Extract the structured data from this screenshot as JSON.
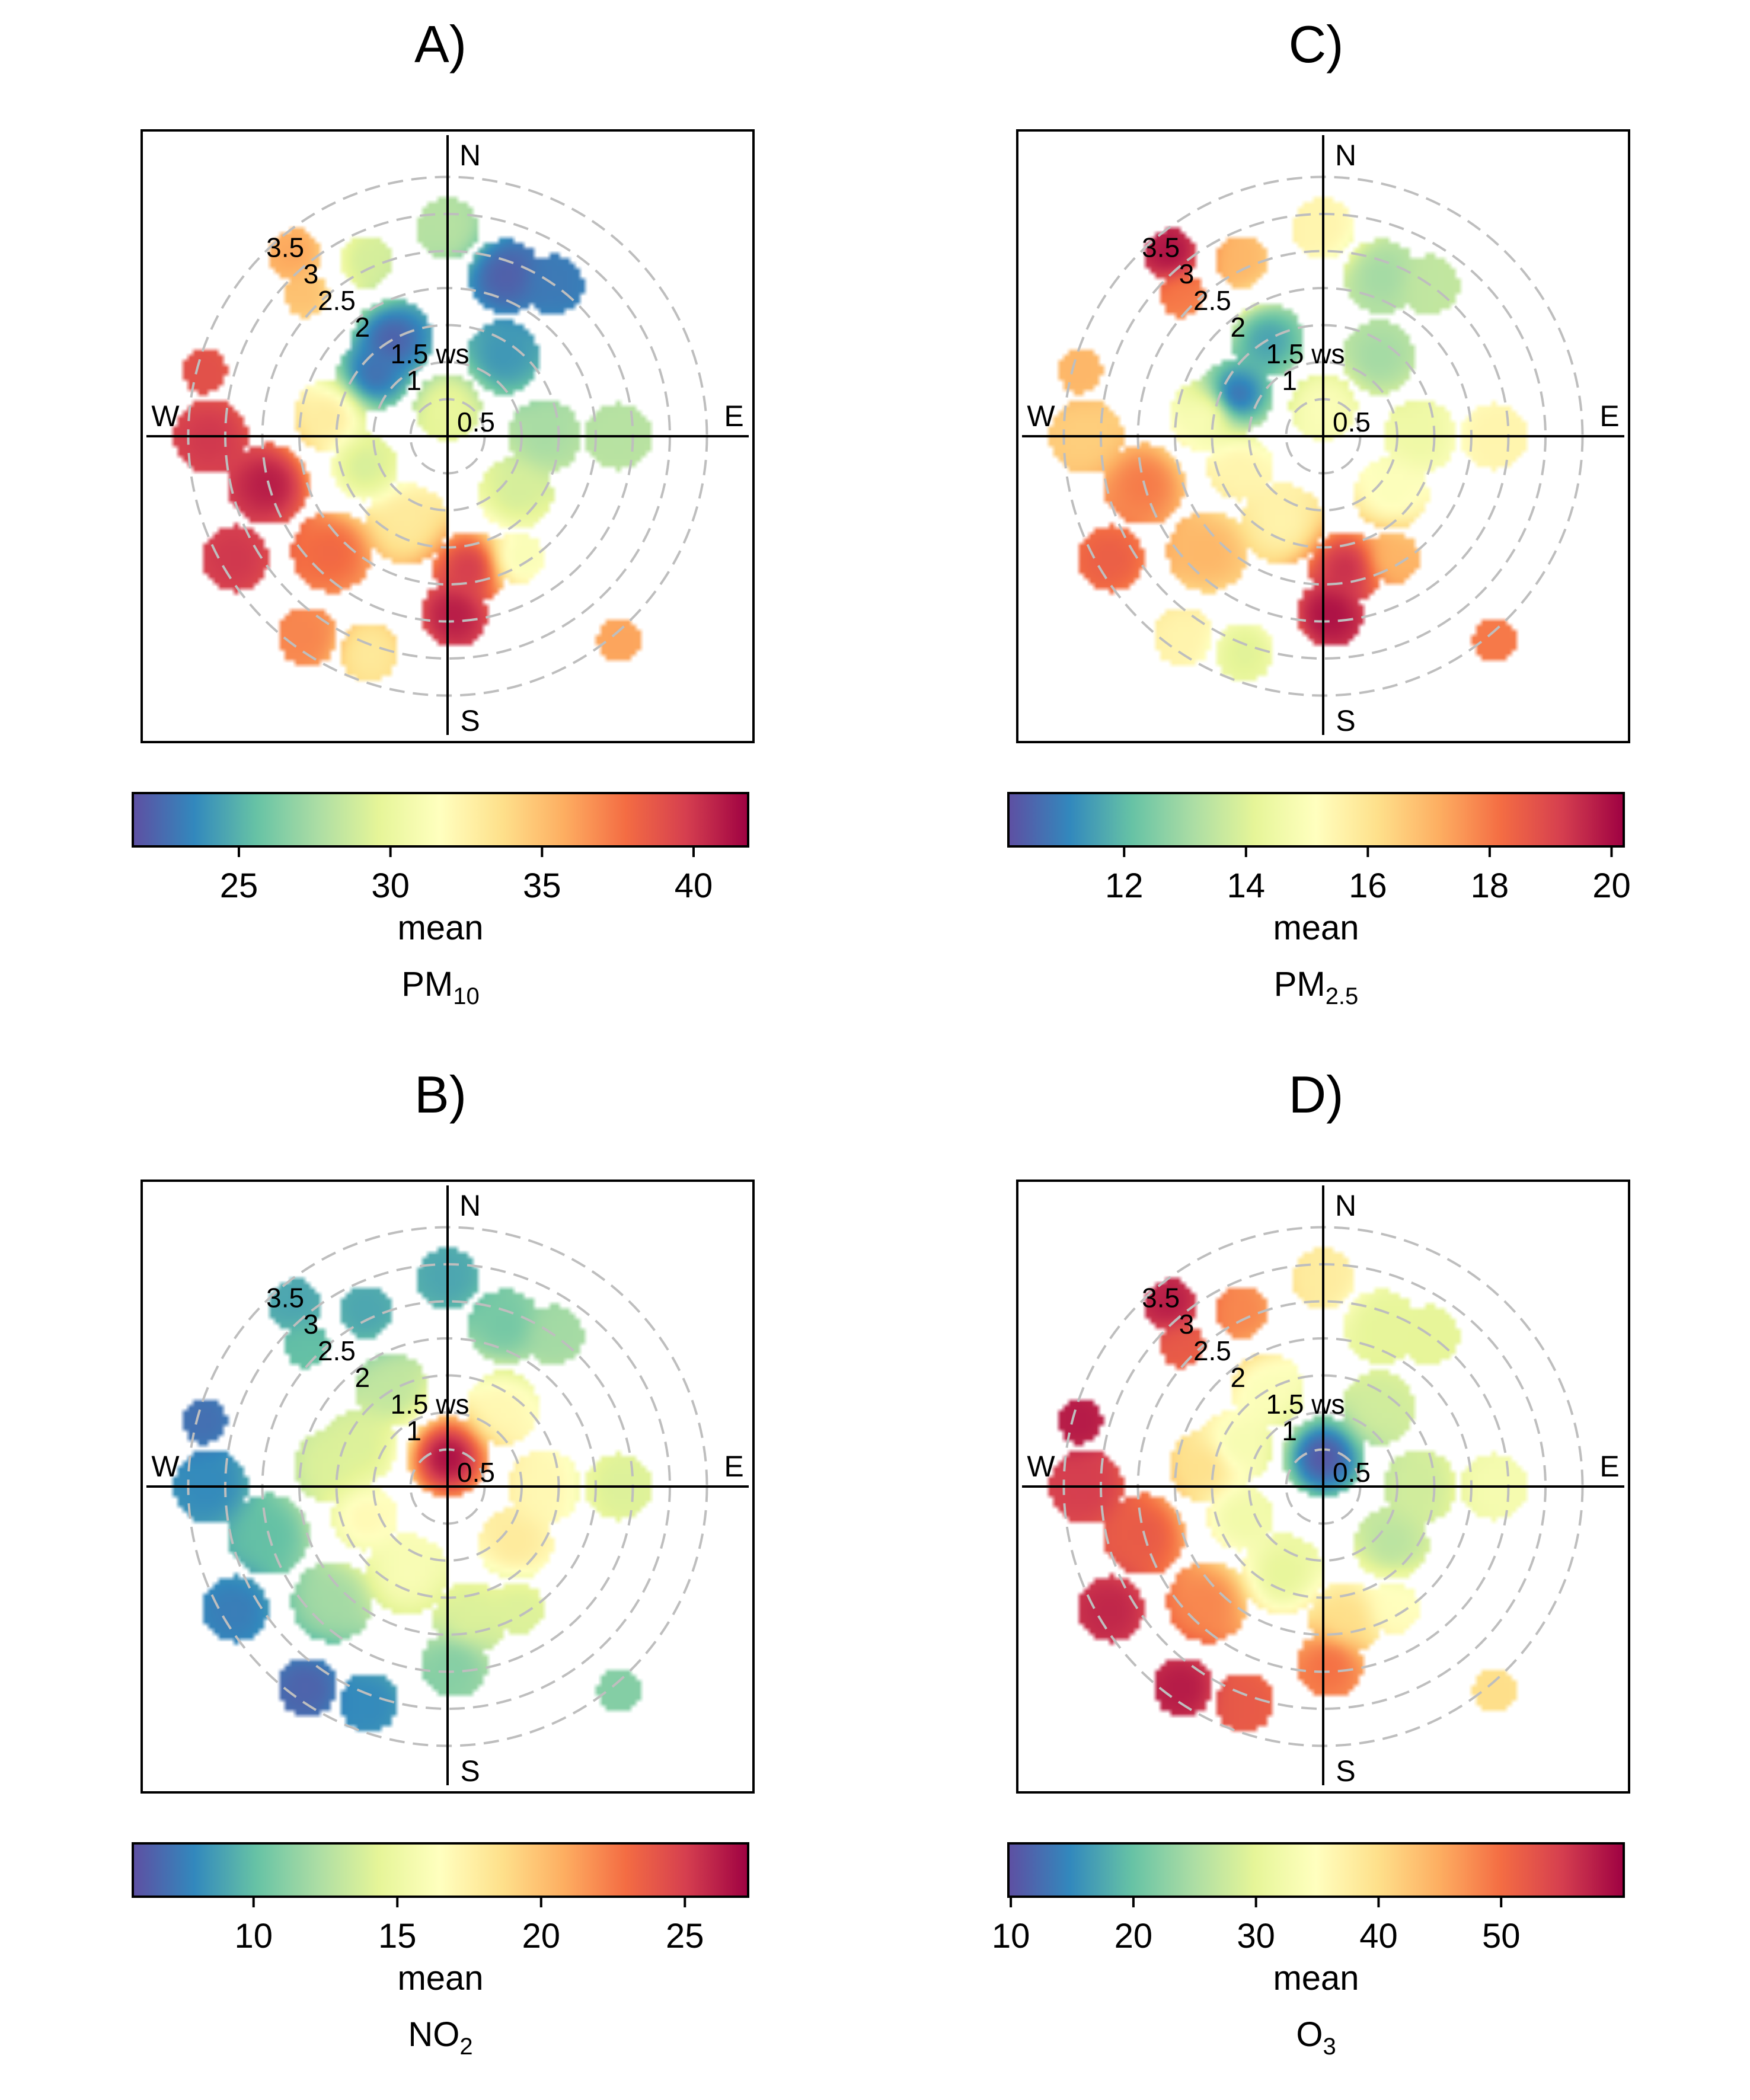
{
  "panels": [
    {
      "id": "A",
      "title": "A)",
      "legend": {
        "ticks": [
          25,
          30,
          35,
          40
        ],
        "tick_labels": [
          "25",
          "30",
          "35",
          "40"
        ],
        "range": [
          21.5,
          41.8
        ],
        "stat_label": "mean",
        "pollutant_main": "PM",
        "pollutant_sub": "10"
      },
      "blobs": [
        {
          "dir": 0,
          "ws": 2.8,
          "r": 0.42,
          "v": 28
        },
        {
          "dir": 20,
          "ws": 2.3,
          "r": 0.5,
          "v": 22
        },
        {
          "dir": 35,
          "ws": 2.5,
          "r": 0.4,
          "v": 23
        },
        {
          "dir": 35,
          "ws": 1.3,
          "r": 0.5,
          "v": 24
        },
        {
          "dir": 330,
          "ws": 1.5,
          "r": 0.55,
          "v": 22
        },
        {
          "dir": 310,
          "ws": 1.3,
          "r": 0.5,
          "v": 22.5
        },
        {
          "dir": 335,
          "ws": 2.6,
          "r": 0.35,
          "v": 29
        },
        {
          "dir": 320,
          "ws": 3.2,
          "r": 0.35,
          "v": 36
        },
        {
          "dir": 315,
          "ws": 2.7,
          "r": 0.3,
          "v": 35
        },
        {
          "dir": 90,
          "ws": 1.3,
          "r": 0.5,
          "v": 27.5
        },
        {
          "dir": 90,
          "ws": 2.3,
          "r": 0.45,
          "v": 28
        },
        {
          "dir": 0,
          "ws": 0.4,
          "r": 0.45,
          "v": 30
        },
        {
          "dir": 130,
          "ws": 1.2,
          "r": 0.5,
          "v": 29
        },
        {
          "dir": 170,
          "ws": 1.8,
          "r": 0.5,
          "v": 40
        },
        {
          "dir": 178,
          "ws": 2.4,
          "r": 0.45,
          "v": 41
        },
        {
          "dir": 150,
          "ws": 1.9,
          "r": 0.35,
          "v": 31
        },
        {
          "dir": 205,
          "ws": 1.3,
          "r": 0.55,
          "v": 33
        },
        {
          "dir": 225,
          "ws": 2.2,
          "r": 0.55,
          "v": 38
        },
        {
          "dir": 255,
          "ws": 2.5,
          "r": 0.55,
          "v": 41
        },
        {
          "dir": 270,
          "ws": 3.2,
          "r": 0.5,
          "v": 40
        },
        {
          "dir": 285,
          "ws": 3.4,
          "r": 0.3,
          "v": 39
        },
        {
          "dir": 240,
          "ws": 3.3,
          "r": 0.45,
          "v": 40
        },
        {
          "dir": 215,
          "ws": 3.3,
          "r": 0.4,
          "v": 37
        },
        {
          "dir": 200,
          "ws": 3.1,
          "r": 0.4,
          "v": 33
        },
        {
          "dir": 250,
          "ws": 1.2,
          "r": 0.45,
          "v": 29
        },
        {
          "dir": 280,
          "ws": 1.6,
          "r": 0.5,
          "v": 33
        },
        {
          "dir": 140,
          "ws": 3.6,
          "r": 0.3,
          "v": 36
        }
      ]
    },
    {
      "id": "C",
      "title": "C)",
      "legend": {
        "ticks": [
          12,
          14,
          16,
          18,
          20
        ],
        "tick_labels": [
          "12",
          "14",
          "16",
          "18",
          "20"
        ],
        "range": [
          10.1,
          20.2
        ],
        "stat_label": "mean",
        "pollutant_main": "PM",
        "pollutant_sub": "2.5"
      },
      "blobs": [
        {
          "dir": 0,
          "ws": 2.8,
          "r": 0.42,
          "v": 15.5
        },
        {
          "dir": 20,
          "ws": 2.3,
          "r": 0.5,
          "v": 13
        },
        {
          "dir": 35,
          "ws": 2.5,
          "r": 0.4,
          "v": 13.5
        },
        {
          "dir": 35,
          "ws": 1.3,
          "r": 0.5,
          "v": 13
        },
        {
          "dir": 330,
          "ws": 1.5,
          "r": 0.5,
          "v": 11.5
        },
        {
          "dir": 295,
          "ws": 1.3,
          "r": 0.5,
          "v": 10.5
        },
        {
          "dir": 335,
          "ws": 2.6,
          "r": 0.35,
          "v": 17
        },
        {
          "dir": 320,
          "ws": 3.2,
          "r": 0.35,
          "v": 20
        },
        {
          "dir": 315,
          "ws": 2.7,
          "r": 0.3,
          "v": 18
        },
        {
          "dir": 90,
          "ws": 1.3,
          "r": 0.5,
          "v": 14.5
        },
        {
          "dir": 90,
          "ws": 2.3,
          "r": 0.45,
          "v": 15.5
        },
        {
          "dir": 0,
          "ws": 0.4,
          "r": 0.45,
          "v": 15
        },
        {
          "dir": 130,
          "ws": 1.2,
          "r": 0.5,
          "v": 15
        },
        {
          "dir": 170,
          "ws": 1.8,
          "r": 0.5,
          "v": 19.5
        },
        {
          "dir": 178,
          "ws": 2.4,
          "r": 0.45,
          "v": 20
        },
        {
          "dir": 150,
          "ws": 1.9,
          "r": 0.35,
          "v": 17
        },
        {
          "dir": 205,
          "ws": 1.3,
          "r": 0.55,
          "v": 15.5
        },
        {
          "dir": 225,
          "ws": 2.2,
          "r": 0.55,
          "v": 17
        },
        {
          "dir": 255,
          "ws": 2.5,
          "r": 0.55,
          "v": 18
        },
        {
          "dir": 270,
          "ws": 3.2,
          "r": 0.5,
          "v": 16.5
        },
        {
          "dir": 285,
          "ws": 3.4,
          "r": 0.3,
          "v": 17
        },
        {
          "dir": 240,
          "ws": 3.3,
          "r": 0.45,
          "v": 18.5
        },
        {
          "dir": 215,
          "ws": 3.3,
          "r": 0.4,
          "v": 15.5
        },
        {
          "dir": 200,
          "ws": 3.1,
          "r": 0.4,
          "v": 14
        },
        {
          "dir": 250,
          "ws": 1.2,
          "r": 0.45,
          "v": 15.5
        },
        {
          "dir": 280,
          "ws": 1.6,
          "r": 0.5,
          "v": 15
        },
        {
          "dir": 140,
          "ws": 3.6,
          "r": 0.3,
          "v": 18
        }
      ]
    },
    {
      "id": "B",
      "title": "B)",
      "legend": {
        "ticks": [
          10,
          15,
          20,
          25
        ],
        "tick_labels": [
          "10",
          "15",
          "20",
          "25"
        ],
        "range": [
          5.8,
          27.2
        ],
        "stat_label": "mean",
        "pollutant_main": "NO",
        "pollutant_sub": "2"
      },
      "blobs": [
        {
          "dir": 0,
          "ws": 2.8,
          "r": 0.42,
          "v": 9
        },
        {
          "dir": 20,
          "ws": 2.3,
          "r": 0.5,
          "v": 10.5
        },
        {
          "dir": 35,
          "ws": 2.5,
          "r": 0.4,
          "v": 12
        },
        {
          "dir": 35,
          "ws": 1.3,
          "r": 0.5,
          "v": 17
        },
        {
          "dir": 330,
          "ws": 1.5,
          "r": 0.5,
          "v": 13
        },
        {
          "dir": 295,
          "ws": 1.3,
          "r": 0.5,
          "v": 14
        },
        {
          "dir": 335,
          "ws": 2.6,
          "r": 0.35,
          "v": 9
        },
        {
          "dir": 320,
          "ws": 3.2,
          "r": 0.35,
          "v": 9
        },
        {
          "dir": 315,
          "ws": 2.7,
          "r": 0.3,
          "v": 10
        },
        {
          "dir": 90,
          "ws": 1.3,
          "r": 0.5,
          "v": 17
        },
        {
          "dir": 90,
          "ws": 2.3,
          "r": 0.45,
          "v": 14
        },
        {
          "dir": 0,
          "ws": 0.4,
          "r": 0.55,
          "v": 27
        },
        {
          "dir": 130,
          "ws": 1.2,
          "r": 0.5,
          "v": 18
        },
        {
          "dir": 170,
          "ws": 1.8,
          "r": 0.5,
          "v": 14
        },
        {
          "dir": 178,
          "ws": 2.4,
          "r": 0.45,
          "v": 11
        },
        {
          "dir": 150,
          "ws": 1.9,
          "r": 0.35,
          "v": 14
        },
        {
          "dir": 205,
          "ws": 1.3,
          "r": 0.55,
          "v": 16
        },
        {
          "dir": 225,
          "ws": 2.2,
          "r": 0.55,
          "v": 12
        },
        {
          "dir": 255,
          "ws": 2.5,
          "r": 0.55,
          "v": 10
        },
        {
          "dir": 270,
          "ws": 3.2,
          "r": 0.5,
          "v": 8
        },
        {
          "dir": 285,
          "ws": 3.4,
          "r": 0.3,
          "v": 7
        },
        {
          "dir": 240,
          "ws": 3.3,
          "r": 0.45,
          "v": 7.5
        },
        {
          "dir": 215,
          "ws": 3.3,
          "r": 0.4,
          "v": 6.5
        },
        {
          "dir": 200,
          "ws": 3.1,
          "r": 0.4,
          "v": 8
        },
        {
          "dir": 250,
          "ws": 1.2,
          "r": 0.45,
          "v": 17
        },
        {
          "dir": 280,
          "ws": 1.6,
          "r": 0.5,
          "v": 14
        },
        {
          "dir": 140,
          "ws": 3.6,
          "r": 0.3,
          "v": 11
        }
      ]
    },
    {
      "id": "D",
      "title": "D)",
      "legend": {
        "ticks": [
          10,
          20,
          30,
          40,
          50
        ],
        "tick_labels": [
          "10",
          "20",
          "30",
          "40",
          "50"
        ],
        "range": [
          9.8,
          60
        ],
        "stat_label": "mean",
        "pollutant_main": "O",
        "pollutant_sub": "3"
      },
      "blobs": [
        {
          "dir": 0,
          "ws": 2.8,
          "r": 0.42,
          "v": 38
        },
        {
          "dir": 20,
          "ws": 2.3,
          "r": 0.5,
          "v": 30
        },
        {
          "dir": 35,
          "ws": 2.5,
          "r": 0.4,
          "v": 30
        },
        {
          "dir": 35,
          "ws": 1.3,
          "r": 0.5,
          "v": 28
        },
        {
          "dir": 330,
          "ws": 1.5,
          "r": 0.5,
          "v": 34
        },
        {
          "dir": 295,
          "ws": 1.3,
          "r": 0.5,
          "v": 33
        },
        {
          "dir": 335,
          "ws": 2.6,
          "r": 0.35,
          "v": 48
        },
        {
          "dir": 320,
          "ws": 3.2,
          "r": 0.35,
          "v": 58
        },
        {
          "dir": 315,
          "ws": 2.7,
          "r": 0.3,
          "v": 52
        },
        {
          "dir": 90,
          "ws": 1.3,
          "r": 0.5,
          "v": 28
        },
        {
          "dir": 90,
          "ws": 2.3,
          "r": 0.45,
          "v": 33
        },
        {
          "dir": 0,
          "ws": 0.4,
          "r": 0.55,
          "v": 10
        },
        {
          "dir": 130,
          "ws": 1.2,
          "r": 0.5,
          "v": 26
        },
        {
          "dir": 170,
          "ws": 1.8,
          "r": 0.5,
          "v": 40
        },
        {
          "dir": 178,
          "ws": 2.4,
          "r": 0.45,
          "v": 50
        },
        {
          "dir": 150,
          "ws": 1.9,
          "r": 0.35,
          "v": 35
        },
        {
          "dir": 205,
          "ws": 1.3,
          "r": 0.55,
          "v": 30
        },
        {
          "dir": 225,
          "ws": 2.2,
          "r": 0.55,
          "v": 48
        },
        {
          "dir": 255,
          "ws": 2.5,
          "r": 0.55,
          "v": 52
        },
        {
          "dir": 270,
          "ws": 3.2,
          "r": 0.5,
          "v": 55
        },
        {
          "dir": 285,
          "ws": 3.4,
          "r": 0.3,
          "v": 58
        },
        {
          "dir": 240,
          "ws": 3.3,
          "r": 0.45,
          "v": 57
        },
        {
          "dir": 215,
          "ws": 3.3,
          "r": 0.4,
          "v": 58
        },
        {
          "dir": 200,
          "ws": 3.1,
          "r": 0.4,
          "v": 52
        },
        {
          "dir": 250,
          "ws": 1.2,
          "r": 0.45,
          "v": 32
        },
        {
          "dir": 280,
          "ws": 1.6,
          "r": 0.5,
          "v": 40
        },
        {
          "dir": 140,
          "ws": 3.6,
          "r": 0.3,
          "v": 40
        }
      ]
    }
  ],
  "compass": {
    "n": "N",
    "s": "S",
    "e": "E",
    "w": "W"
  },
  "ring_labels": [
    {
      "ws": 0.5,
      "text": "0.5"
    },
    {
      "ws": 1,
      "text": "1"
    },
    {
      "ws": 1.5,
      "text": "1.5 ws"
    },
    {
      "ws": 2,
      "text": "2"
    },
    {
      "ws": 2.5,
      "text": "2.5"
    },
    {
      "ws": 3,
      "text": "3"
    },
    {
      "ws": 3.5,
      "text": "3.5"
    }
  ],
  "palette": [
    "#5E4FA2",
    "#3288BD",
    "#66C2A5",
    "#ABDDA4",
    "#E6F598",
    "#FFFFBF",
    "#FEE08B",
    "#FDAE61",
    "#F46D43",
    "#D53E4F",
    "#9E0142"
  ],
  "ring_color": "#BEBEBE",
  "chart_data": [
    {
      "type": "heatmap",
      "title": "A)",
      "subtype": "polar plot",
      "legend_title": "mean PM10",
      "colorbar_ticks": [
        25,
        30,
        35,
        40
      ],
      "color_range": [
        21.5,
        41.8
      ],
      "radial_axis": "ws",
      "radial_ticks": [
        0.5,
        1,
        1.5,
        2,
        2.5,
        3,
        3.5
      ],
      "direction_labels": [
        "N",
        "E",
        "S",
        "W"
      ],
      "pattern": "low values (~22) to the N/NW at ws 1-2.5; high values (~40-41) to the S at ws ~2-2.5 and to the W/SW at ws 2.5-3.5"
    },
    {
      "type": "heatmap",
      "title": "C)",
      "subtype": "polar plot",
      "legend_title": "mean PM2.5",
      "colorbar_ticks": [
        12,
        14,
        16,
        18,
        20
      ],
      "color_range": [
        10.1,
        20.2
      ],
      "radial_axis": "ws",
      "radial_ticks": [
        0.5,
        1,
        1.5,
        2,
        2.5,
        3,
        3.5
      ],
      "direction_labels": [
        "N",
        "E",
        "S",
        "W"
      ],
      "pattern": "minimum (~10.5) WNW at ws ~1.3; maximum (~20) S at ws ~2-2.5 and NW at ws ~3.2"
    },
    {
      "type": "heatmap",
      "title": "B)",
      "subtype": "polar plot",
      "legend_title": "mean NO2",
      "colorbar_ticks": [
        10,
        15,
        20,
        25
      ],
      "color_range": [
        5.8,
        27.2
      ],
      "radial_axis": "ws",
      "radial_ticks": [
        0.5,
        1,
        1.5,
        2,
        2.5,
        3,
        3.5
      ],
      "direction_labels": [
        "N",
        "E",
        "S",
        "W"
      ],
      "pattern": "maximum (~27) at the centre (low wind speed), decreasing outward to ~6-8 at ws > 3"
    },
    {
      "type": "heatmap",
      "title": "D)",
      "subtype": "polar plot",
      "legend_title": "mean O3",
      "colorbar_ticks": [
        10,
        20,
        30,
        40,
        50
      ],
      "color_range": [
        9.8,
        60
      ],
      "radial_axis": "ws",
      "radial_ticks": [
        0.5,
        1,
        1.5,
        2,
        2.5,
        3,
        3.5
      ],
      "direction_labels": [
        "N",
        "E",
        "S",
        "W"
      ],
      "pattern": "minimum (~10) at the centre (low wind speed), increasing outward to ~55-60 at ws > 3 to the W and S"
    }
  ]
}
